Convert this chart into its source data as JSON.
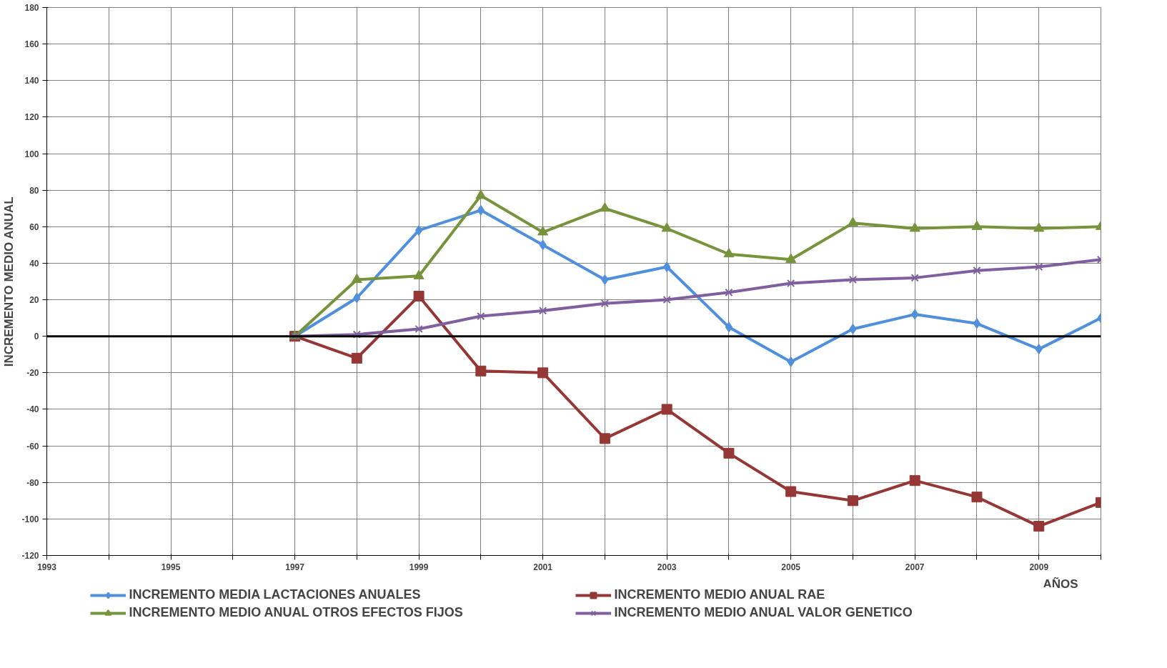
{
  "chart_data": {
    "type": "line",
    "ylabel": "INCREMENTO MEDIO ANUAL",
    "xlabel": "AÑOS",
    "x": [
      1997,
      1998,
      1999,
      2000,
      2001,
      2002,
      2003,
      2004,
      2005,
      2006,
      2007,
      2008,
      2009,
      2010
    ],
    "series": [
      {
        "name": "INCREMENTO MEDIA LACTACIONES ANUALES",
        "color": "#4f8fdc",
        "marker": "diamond",
        "values": [
          0,
          21,
          58,
          69,
          50,
          31,
          38,
          5,
          -14,
          4,
          12,
          7,
          -7,
          10
        ]
      },
      {
        "name": "INCREMENTO MEDIO ANUAL RAE",
        "color": "#953735",
        "marker": "square",
        "values": [
          0,
          -12,
          22,
          -19,
          -20,
          -56,
          -40,
          -64,
          -85,
          -90,
          -79,
          -88,
          -104,
          -91
        ]
      },
      {
        "name": "INCREMENTO MEDIO ANUAL OTROS EFECTOS FIJOS",
        "color": "#77933c",
        "marker": "triangle",
        "values": [
          0,
          31,
          33,
          77,
          57,
          70,
          59,
          45,
          42,
          62,
          59,
          60,
          59,
          60
        ]
      },
      {
        "name": "INCREMENTO MEDIO ANUAL VALOR GENETICO",
        "color": "#7f5fa0",
        "marker": "cross",
        "values": [
          0,
          1,
          4,
          11,
          14,
          18,
          20,
          24,
          29,
          31,
          32,
          36,
          38,
          42
        ]
      }
    ],
    "xlim": [
      1993,
      2010
    ],
    "xticks": [
      1993,
      {
        "value": 1994,
        "label": null
      },
      1995,
      {
        "value": 1996,
        "label": null
      },
      1997,
      {
        "value": 1998,
        "label": null
      },
      1999,
      {
        "value": 2000,
        "label": null
      },
      2001,
      {
        "value": 2002,
        "label": null
      },
      2003,
      {
        "value": 2004,
        "label": null
      },
      2005,
      {
        "value": 2006,
        "label": null
      },
      2007,
      {
        "value": 2008,
        "label": null
      },
      2009,
      {
        "value": 2010,
        "label": null
      }
    ],
    "ylim": [
      -120,
      180
    ],
    "yticks": [
      -120,
      -100,
      -80,
      -60,
      -40,
      -20,
      0,
      20,
      40,
      60,
      80,
      100,
      120,
      140,
      160,
      180
    ],
    "ref_lines": [
      {
        "axis": "y",
        "value": 0,
        "color": "#000000"
      }
    ],
    "grid": true,
    "legend": "bottom",
    "line_style": "solid"
  }
}
